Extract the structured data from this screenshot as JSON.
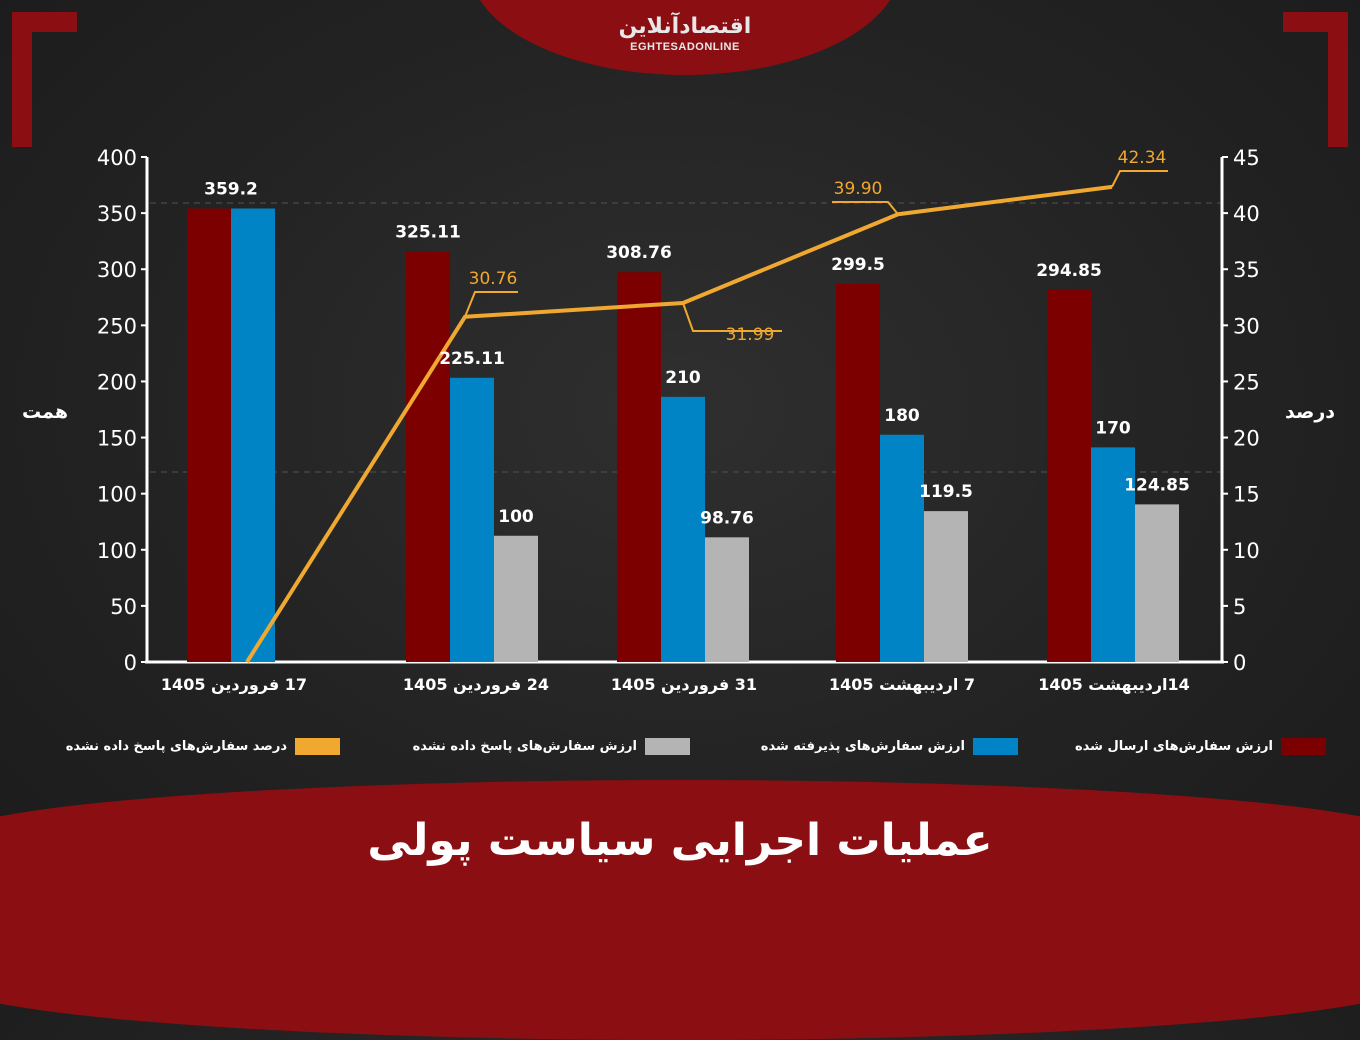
{
  "title": "عملیات اجرایی سیاست پولی",
  "logo": {
    "fa": "اقتصادآنلاین",
    "en": "EGHTESADONLINE"
  },
  "colors": {
    "sent": "#7d0000",
    "accepted": "#0084c6",
    "unanswered": "#b4b4b4",
    "percent": "#f0a830",
    "brand": "#8b0f12"
  },
  "legend": [
    {
      "label": "ارزش سفارش‌های ارسال شده",
      "color": "#7d0000"
    },
    {
      "label": "ارزش سفارش‌های پذیرفته شده",
      "color": "#0084c6"
    },
    {
      "label": "ارزش سفارش‌های پاسخ داده نشده",
      "color": "#b4b4b4"
    },
    {
      "label": "درصد سفارش‌های پاسخ داده نشده",
      "color": "#f0a830"
    }
  ],
  "chart_data": {
    "type": "bar",
    "categories": [
      "17 فروردین 1405",
      "24 فروردین 1405",
      "31 فروردین 1405",
      "7 اردیبهشت 1405",
      "14اردیبهشت 1405"
    ],
    "series": [
      {
        "name": "ارزش سفارش‌های ارسال شده",
        "values": [
          359.2,
          325.11,
          308.76,
          299.5,
          294.85
        ],
        "labels": [
          "359.2",
          "325.11",
          "308.76",
          "299.5",
          "294.85"
        ]
      },
      {
        "name": "ارزش سفارش‌های پذیرفته شده",
        "values": [
          359.2,
          225.11,
          210,
          180,
          170
        ],
        "labels": [
          "",
          "225.11",
          "210",
          "180",
          "170"
        ]
      },
      {
        "name": "ارزش سفارش‌های پاسخ داده نشده",
        "values": [
          null,
          100,
          98.76,
          119.5,
          124.85
        ],
        "labels": [
          "",
          "100",
          "98.76",
          "119.5",
          "124.85"
        ]
      }
    ],
    "line": {
      "name": "درصد سفارش‌های پاسخ داده نشده",
      "values": [
        0,
        30.76,
        31.99,
        39.9,
        42.34
      ],
      "labels": [
        "",
        "30.76",
        "31.99",
        "39.90",
        "42.34"
      ]
    },
    "ylabel": "همت",
    "y2label": "درصد",
    "ylim": [
      0,
      400
    ],
    "y2lim": [
      0,
      45
    ],
    "yticks": [
      "0",
      "50",
      "100",
      "100",
      "150",
      "200",
      "250",
      "300",
      "350",
      "400"
    ],
    "y2ticks": [
      "0",
      "5",
      "10",
      "15",
      "20",
      "25",
      "30",
      "35",
      "40",
      "45"
    ],
    "grid": false,
    "legend_position": "bottom"
  }
}
